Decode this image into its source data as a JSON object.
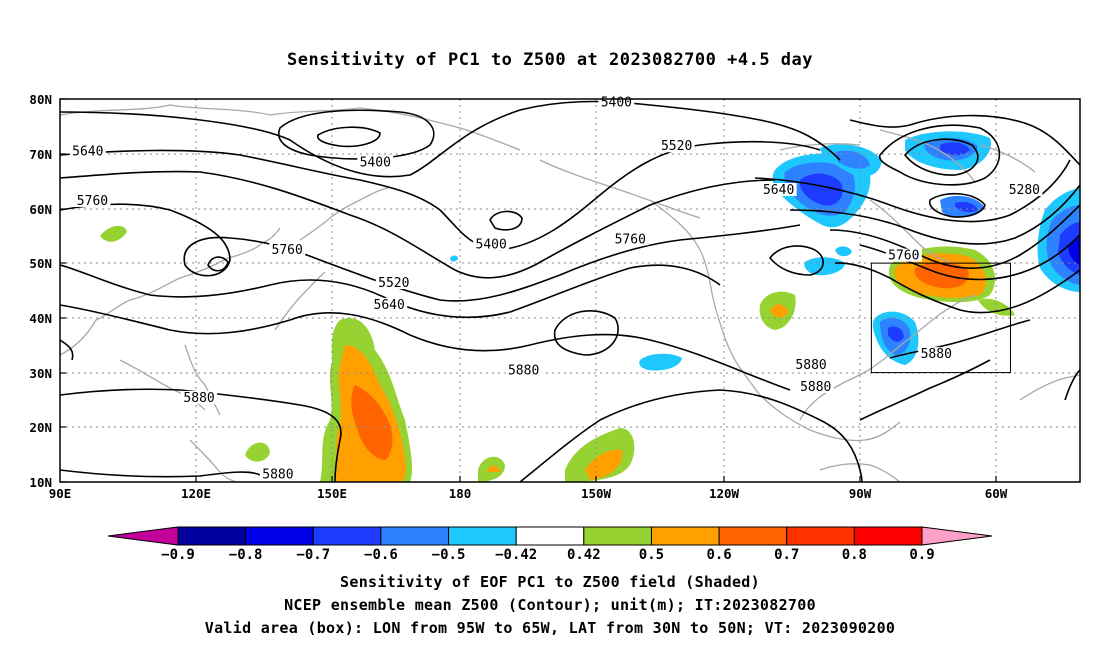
{
  "title": "Sensitivity of PC1 to Z500 at 2023082700 +4.5 day",
  "lat_ticks": [
    "80N",
    "70N",
    "60N",
    "50N",
    "40N",
    "30N",
    "20N",
    "10N"
  ],
  "lon_ticks": [
    "90E",
    "120E",
    "150E",
    "180",
    "150W",
    "120W",
    "90W",
    "60W"
  ],
  "contour_labels": [
    {
      "text": "5400",
      "lat": 79,
      "lon": -150
    },
    {
      "text": "5520",
      "lat": 71,
      "lon": -137
    },
    {
      "text": "5640",
      "lat": 70,
      "lon": 96
    },
    {
      "text": "5400",
      "lat": 68,
      "lon": 158
    },
    {
      "text": "5640",
      "lat": 63,
      "lon": -115
    },
    {
      "text": "5280",
      "lat": 63,
      "lon": -62
    },
    {
      "text": "5760",
      "lat": 61,
      "lon": 97
    },
    {
      "text": "5400",
      "lat": 53,
      "lon": -177
    },
    {
      "text": "5760",
      "lat": 54,
      "lon": -147
    },
    {
      "text": "5760",
      "lat": 52,
      "lon": 139
    },
    {
      "text": "5760",
      "lat": 51,
      "lon": -88
    },
    {
      "text": "5520",
      "lat": 46,
      "lon": 162
    },
    {
      "text": "5640",
      "lat": 42,
      "lon": 161
    },
    {
      "text": "5880",
      "lat": 31,
      "lon": -108
    },
    {
      "text": "5880",
      "lat": 27,
      "lon": -107
    },
    {
      "text": "5880",
      "lat": 30,
      "lon": -170
    },
    {
      "text": "5880",
      "lat": 33,
      "lon": -81
    },
    {
      "text": "5880",
      "lat": 25,
      "lon": 120
    },
    {
      "text": "5880",
      "lat": 11,
      "lon": 137
    }
  ],
  "valid_box": {
    "lon_from": -95,
    "lon_to": -65,
    "lat_from": 30,
    "lat_to": 50
  },
  "colorbar": {
    "colors": [
      "#c4009c",
      "#0000a0",
      "#0000e6",
      "#1e3cff",
      "#2e82ff",
      "#1ec8ff",
      "#ffffff",
      "#96d232",
      "#ffa000",
      "#ff6400",
      "#ff3200",
      "#ff0000",
      "#ffa0c8"
    ],
    "labels": [
      "-0.9",
      "-0.8",
      "-0.7",
      "-0.6",
      "-0.5",
      "-0.42",
      "0.42",
      "0.5",
      "0.6",
      "0.7",
      "0.8",
      "0.9"
    ]
  },
  "caption_line1": "Sensitivity of EOF PC1 to Z500 field (Shaded)",
  "caption_line2": "NCEP ensemble mean Z500 (Contour); unit(m); IT:2023082700",
  "caption_line3": "Valid area (box): LON from 95W to 65W, LAT from 30N to 50N; VT: 2023090200"
}
